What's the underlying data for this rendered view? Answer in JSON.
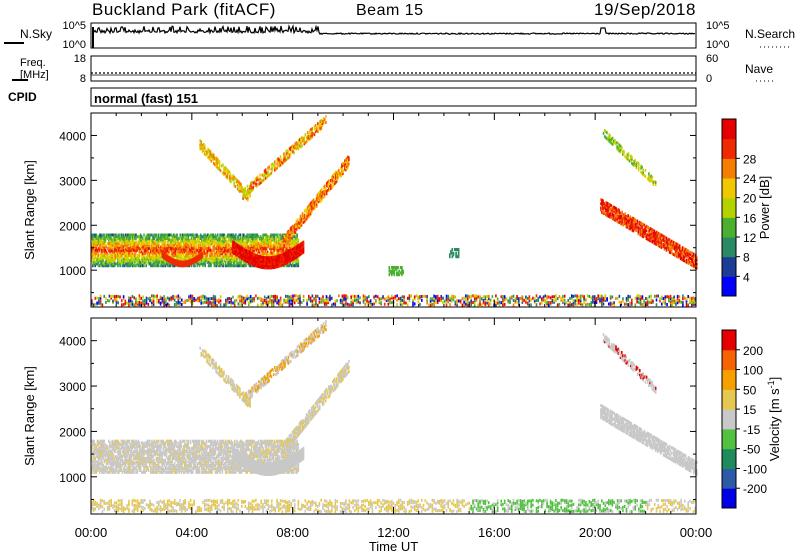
{
  "header": {
    "station": "Buckland Park (fitACF)",
    "beam": "Beam 15",
    "date": "19/Sep/2018"
  },
  "chart_data": [
    {
      "type": "line",
      "panel": "N.Sky / N.Search",
      "left_label": "N.Sky",
      "right_label": "N.Search",
      "left_ticks": [
        "10^5",
        "10^0"
      ],
      "right_ticks": [
        "10^5",
        "10^0"
      ],
      "description_of_series": [
        "noise level (sky)",
        "search noise"
      ]
    },
    {
      "type": "line",
      "panel": "Freq / Nave",
      "left_label": "Freq.",
      "left_unit": "[MHz]",
      "left_ticks": [
        "18",
        "8"
      ],
      "right_label": "Nave",
      "right_ticks": [
        "60",
        "0"
      ]
    },
    {
      "type": "table",
      "panel": "CPID",
      "label": "CPID",
      "text": "normal (fast) 151"
    },
    {
      "type": "heatmap",
      "panel": "Power",
      "ylabel": "Slant Range [km]",
      "yticks": [
        1000,
        2000,
        3000,
        4000
      ],
      "ylim": [
        180,
        4500
      ],
      "colorbar_label": "Power [dB]",
      "colorbar_ticks": [
        "4",
        "8",
        "12",
        "16",
        "20",
        "24",
        "28"
      ],
      "colors": [
        "#0000ff",
        "#1c3c96",
        "#2a8a64",
        "#4bb030",
        "#b4d200",
        "#f0c800",
        "#f57d00",
        "#ef2a00",
        "#e60000"
      ]
    },
    {
      "type": "heatmap",
      "panel": "Velocity",
      "ylabel": "Slant Range [km]",
      "yticks": [
        1000,
        2000,
        3000,
        4000
      ],
      "ylim": [
        180,
        4500
      ],
      "colorbar_label": "Velocity [m s",
      "colorbar_label_sup": "-1",
      "colorbar_label_end": "]",
      "colorbar_ticks": [
        "200",
        "100",
        "50",
        "15",
        "-15",
        "-50",
        "-100",
        "-200"
      ],
      "colors": [
        "#0000e6",
        "#2a5aa8",
        "#1e8c5a",
        "#52c040",
        "#c8c8c8",
        "#e6c850",
        "#f5a000",
        "#f56400",
        "#e60000"
      ]
    }
  ],
  "xaxis": {
    "label": "Time UT",
    "ticks": [
      "00:00",
      "04:00",
      "08:00",
      "12:00",
      "16:00",
      "20:00",
      "00:00"
    ]
  }
}
